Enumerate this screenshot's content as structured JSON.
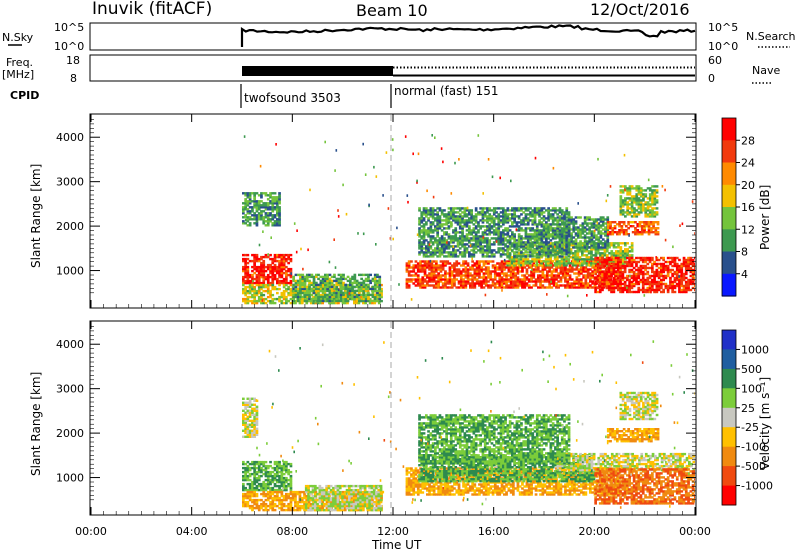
{
  "header": {
    "station": "Inuvik (fitACF)",
    "beam": "Beam 10",
    "date": "12/Oct/2016"
  },
  "summary": {
    "left_label": "N.Sky",
    "left_ticks": [
      "10^5",
      "10^0"
    ],
    "right_ticks": [
      "10^5",
      "10^0"
    ],
    "right_label": "N.Search",
    "freq_label": "Freq.",
    "freq_unit": "[MHz]",
    "freq_ticks": [
      "18",
      "8"
    ],
    "nave_ticks": [
      "60",
      "0"
    ],
    "nave_label": "Nave",
    "cpid_label": "CPID",
    "cpid_modes": [
      {
        "label": "twofsound 3503",
        "start": "06:00",
        "end": "12:00"
      },
      {
        "label": "normal (fast) 151",
        "start": "12:00",
        "end": "24:00"
      }
    ]
  },
  "power_colorbar": {
    "title": "Power [dB]",
    "ticks": [
      "28",
      "24",
      "20",
      "16",
      "12",
      "8",
      "4"
    ],
    "colors": [
      "#ff0000",
      "#f23a0e",
      "#ff8a00",
      "#f3c000",
      "#74c43c",
      "#3d9950",
      "#29508c",
      "#0a18ff"
    ]
  },
  "velocity_colorbar": {
    "title": "Velocity [m s⁻¹]",
    "ticks": [
      "1000",
      "500",
      "100",
      "25",
      "-25",
      "-100",
      "-500",
      "-1000"
    ],
    "colors": [
      "#2030c8",
      "#1f5ea0",
      "#2e8a4f",
      "#7ccd3a",
      "#c8c8c0",
      "#ffc000",
      "#f08a10",
      "#f04a10",
      "#ff0000"
    ]
  },
  "x_axis": {
    "label": "Time UT",
    "ticks": [
      "00:00",
      "04:00",
      "08:00",
      "12:00",
      "16:00",
      "20:00",
      "00:00"
    ]
  },
  "chart_data": [
    {
      "type": "heatmap",
      "name": "power",
      "ylabel": "Slant Range [km]",
      "ylim": [
        180,
        4500
      ],
      "yticks": [
        "4000",
        "3000",
        "2000",
        "1000"
      ],
      "xlim": [
        0,
        24
      ],
      "x_unit": "hours UT",
      "colorbar": "Power [dB]",
      "patches": [
        {
          "t0": 6.0,
          "t1": 7.9,
          "r0": 700,
          "r1": 1350,
          "value": 28
        },
        {
          "t0": 6.0,
          "t1": 7.5,
          "r0": 2000,
          "r1": 2750,
          "value": 10
        },
        {
          "t0": 6.0,
          "t1": 11.5,
          "r0": 250,
          "r1": 700,
          "value": 16
        },
        {
          "t0": 8.0,
          "t1": 11.5,
          "r0": 300,
          "r1": 900,
          "value": 12
        },
        {
          "t0": 12.5,
          "t1": 21.0,
          "r0": 600,
          "r1": 1200,
          "value": 26
        },
        {
          "t0": 16.5,
          "t1": 21.5,
          "r0": 1100,
          "r1": 1600,
          "value": 14
        },
        {
          "t0": 18.5,
          "t1": 20.5,
          "r0": 1500,
          "r1": 2200,
          "value": 10
        },
        {
          "t0": 20.0,
          "t1": 24.0,
          "r0": 500,
          "r1": 1300,
          "value": 28
        },
        {
          "t0": 20.5,
          "t1": 22.5,
          "r0": 1800,
          "r1": 2100,
          "value": 24
        },
        {
          "t0": 21.0,
          "t1": 22.5,
          "r0": 2200,
          "r1": 2900,
          "value": 14
        },
        {
          "t0": 13.0,
          "t1": 19.0,
          "r0": 1300,
          "r1": 2400,
          "value": 10
        }
      ]
    },
    {
      "type": "heatmap",
      "name": "velocity",
      "ylabel": "Slant Range [km]",
      "ylim": [
        180,
        4500
      ],
      "yticks": [
        "4000",
        "3000",
        "2000",
        "1000"
      ],
      "xlim": [
        0,
        24
      ],
      "x_unit": "hours UT",
      "colorbar": "Velocity [m s⁻¹]",
      "patches": [
        {
          "t0": 6.0,
          "t1": 7.9,
          "r0": 700,
          "r1": 1350,
          "value": 100
        },
        {
          "t0": 6.0,
          "t1": 6.6,
          "r0": 1900,
          "r1": 2800,
          "value": 0
        },
        {
          "t0": 6.0,
          "t1": 11.5,
          "r0": 250,
          "r1": 700,
          "value": -100
        },
        {
          "t0": 8.5,
          "t1": 11.5,
          "r0": 250,
          "r1": 800,
          "value": 25
        },
        {
          "t0": 12.5,
          "t1": 21.0,
          "r0": 600,
          "r1": 1200,
          "value": -100
        },
        {
          "t0": 13.0,
          "t1": 20.0,
          "r0": 900,
          "r1": 1500,
          "value": 100
        },
        {
          "t0": 18.5,
          "t1": 24.0,
          "r0": 1150,
          "r1": 1550,
          "value": 0
        },
        {
          "t0": 20.0,
          "t1": 24.0,
          "r0": 400,
          "r1": 1200,
          "value": -500
        },
        {
          "t0": 20.5,
          "t1": 22.5,
          "r0": 1800,
          "r1": 2100,
          "value": -100
        },
        {
          "t0": 21.0,
          "t1": 22.5,
          "r0": 2300,
          "r1": 2900,
          "value": 0
        },
        {
          "t0": 13.0,
          "t1": 19.0,
          "r0": 1300,
          "r1": 2400,
          "value": 100
        }
      ]
    }
  ]
}
